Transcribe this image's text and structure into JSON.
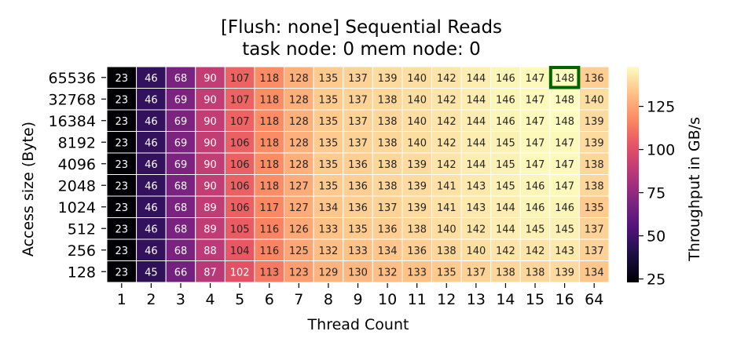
{
  "chart_data": {
    "type": "heatmap",
    "title": "[Flush: none] Sequential Reads",
    "subtitle": "task node: 0 mem node: 0",
    "xlabel": "Thread Count",
    "ylabel": "Access size (Byte)",
    "colorbar_label": "Throughput in GB/s",
    "colorbar_ticks": [
      25,
      50,
      75,
      100,
      125
    ],
    "colorbar_range": [
      23,
      148
    ],
    "colormap": "magma",
    "x": [
      "1",
      "2",
      "3",
      "4",
      "5",
      "6",
      "7",
      "8",
      "9",
      "10",
      "11",
      "12",
      "13",
      "14",
      "15",
      "16",
      "64"
    ],
    "y": [
      "65536",
      "32768",
      "16384",
      "8192",
      "4096",
      "2048",
      "1024",
      "512",
      "256",
      "128"
    ],
    "values": [
      [
        23,
        46,
        68,
        90,
        107,
        118,
        128,
        135,
        137,
        139,
        140,
        142,
        144,
        146,
        147,
        148,
        136
      ],
      [
        23,
        46,
        69,
        90,
        107,
        118,
        128,
        135,
        137,
        138,
        140,
        142,
        144,
        146,
        147,
        148,
        140
      ],
      [
        23,
        46,
        69,
        90,
        107,
        118,
        128,
        135,
        137,
        138,
        140,
        142,
        144,
        146,
        147,
        148,
        139
      ],
      [
        23,
        46,
        69,
        90,
        106,
        118,
        128,
        135,
        137,
        138,
        140,
        142,
        144,
        145,
        147,
        147,
        139
      ],
      [
        23,
        46,
        69,
        90,
        106,
        118,
        128,
        135,
        136,
        138,
        139,
        142,
        144,
        145,
        147,
        147,
        138
      ],
      [
        23,
        46,
        68,
        90,
        106,
        118,
        127,
        135,
        136,
        138,
        139,
        141,
        143,
        145,
        146,
        147,
        138
      ],
      [
        23,
        46,
        68,
        89,
        106,
        117,
        127,
        134,
        136,
        137,
        139,
        141,
        143,
        144,
        146,
        146,
        135
      ],
      [
        23,
        46,
        68,
        89,
        105,
        116,
        126,
        133,
        135,
        136,
        138,
        140,
        142,
        144,
        145,
        145,
        137
      ],
      [
        23,
        46,
        68,
        88,
        104,
        116,
        125,
        132,
        133,
        134,
        136,
        138,
        140,
        142,
        142,
        143,
        137
      ],
      [
        23,
        45,
        66,
        87,
        102,
        113,
        123,
        129,
        130,
        132,
        133,
        135,
        137,
        138,
        138,
        139,
        134
      ]
    ],
    "highlight": {
      "row": 0,
      "col": 15,
      "color": "#006400"
    }
  }
}
